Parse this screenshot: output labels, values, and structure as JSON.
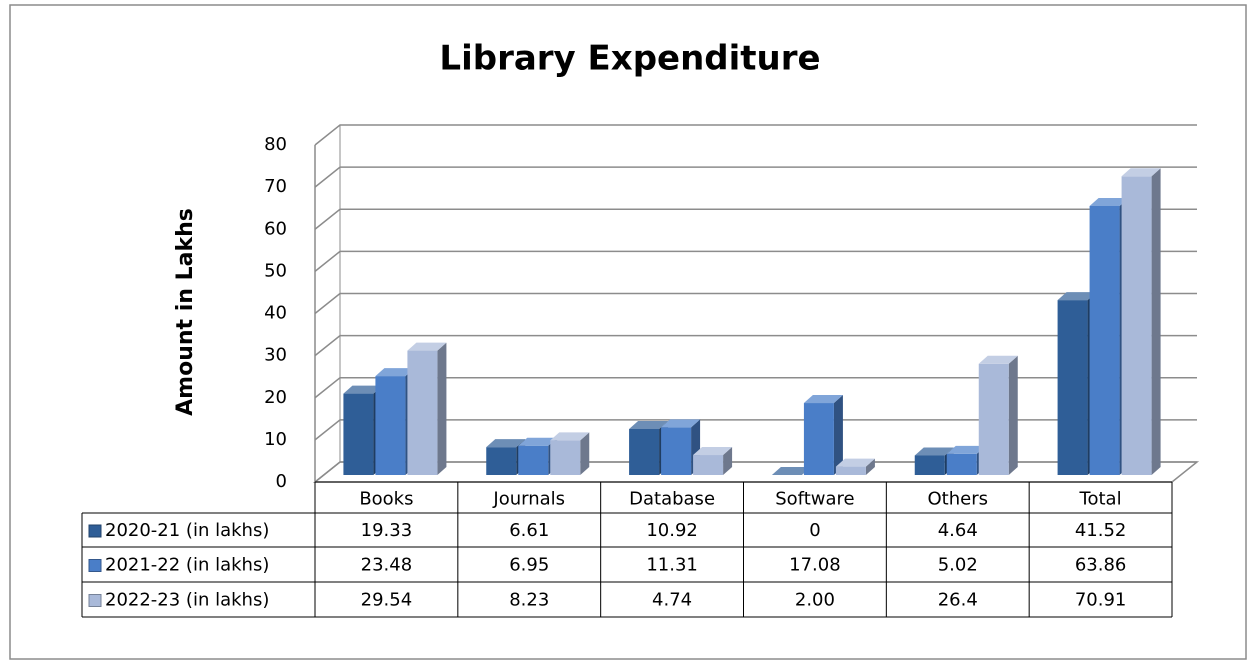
{
  "chart_data": {
    "type": "bar3d",
    "title": "Library Expenditure",
    "ylabel": "Amount in Lakhs",
    "categories": [
      "Books",
      "Journals",
      "Database",
      "Software",
      "Others",
      "Total"
    ],
    "series": [
      {
        "name": "2020-21 (in lakhs)",
        "color": "#2f5e97",
        "values": [
          19.33,
          6.61,
          10.92,
          0,
          4.64,
          41.52
        ],
        "value_labels": [
          "19.33",
          "6.61",
          "10.92",
          "0",
          "4.64",
          "41.52"
        ]
      },
      {
        "name": "2021-22 (in lakhs)",
        "color": "#4a7ec8",
        "values": [
          23.48,
          6.95,
          11.31,
          17.08,
          5.02,
          63.86
        ],
        "value_labels": [
          "23.48",
          "6.95",
          "11.31",
          "17.08",
          "5.02",
          "63.86"
        ]
      },
      {
        "name": "2022-23 (in lakhs)",
        "color": "#a9b9d9",
        "values": [
          29.54,
          8.23,
          4.74,
          2,
          26.4,
          70.91
        ],
        "value_labels": [
          "29.54",
          "8.23",
          "4.74",
          "2.00",
          "26.4",
          "70.91"
        ]
      }
    ],
    "ylim": [
      0,
      80
    ],
    "yticks": [
      0,
      10,
      20,
      30,
      40,
      50,
      60,
      70,
      80
    ],
    "grid": true,
    "data_table": true
  }
}
